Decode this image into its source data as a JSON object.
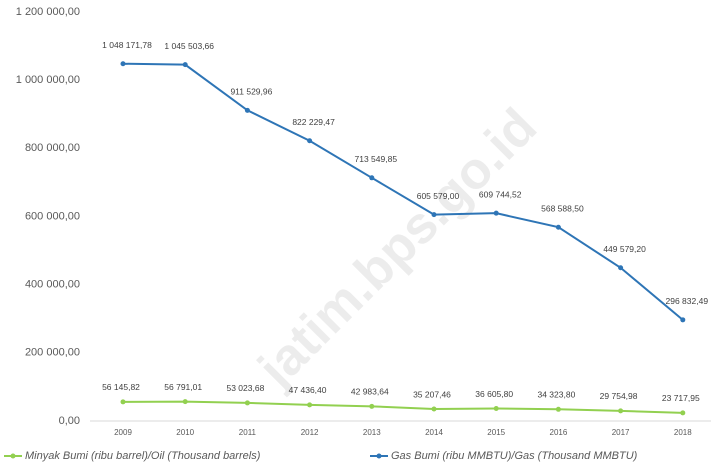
{
  "chart_data": {
    "type": "line",
    "categories": [
      "2009",
      "2010",
      "2011",
      "2012",
      "2013",
      "2014",
      "2015",
      "2016",
      "2017",
      "2018"
    ],
    "series": [
      {
        "name": "Minyak Bumi (ribu barrel)/Oil (Thousand barrels)",
        "color": "#92d050",
        "values": [
          56145.82,
          56791.01,
          53023.68,
          47436.4,
          42983.64,
          35207.46,
          36605.8,
          34323.8,
          29754.98,
          23717.95
        ],
        "value_labels": [
          "56 145,82",
          "56 791,01",
          "53 023,68",
          "47 436,40",
          "42 983,64",
          "35 207,46",
          "36 605,80",
          "34 323,80",
          "29 754,98",
          "23 717,95"
        ]
      },
      {
        "name": "Gas Bumi (ribu MMBTU)/Gas (Thousand MMBTU)",
        "color": "#2e75b6",
        "values": [
          1048171.78,
          1045503.66,
          911529.96,
          822229.47,
          713549.85,
          605579.0,
          609744.52,
          568588.5,
          449579.2,
          296832.49
        ],
        "value_labels": [
          "1 048 171,78",
          "1 045 503,66",
          "911 529,96",
          "822 229,47",
          "713 549,85",
          "605 579,00",
          "609 744,52",
          "568 588,50",
          "449 579,20",
          "296 832,49"
        ]
      }
    ],
    "ylim": [
      0,
      1200000
    ],
    "yticks": [
      {
        "value": 0,
        "label": "0,00"
      },
      {
        "value": 200000,
        "label": "200 000,00"
      },
      {
        "value": 400000,
        "label": "400 000,00"
      },
      {
        "value": 600000,
        "label": "600 000,00"
      },
      {
        "value": 800000,
        "label": "800 000,00"
      },
      {
        "value": 1000000,
        "label": "1 000 000,00"
      },
      {
        "value": 1200000,
        "label": "1 200 000,00"
      }
    ],
    "grid": false,
    "legend": "bottom",
    "watermark": "jatim.bps.go.id"
  }
}
